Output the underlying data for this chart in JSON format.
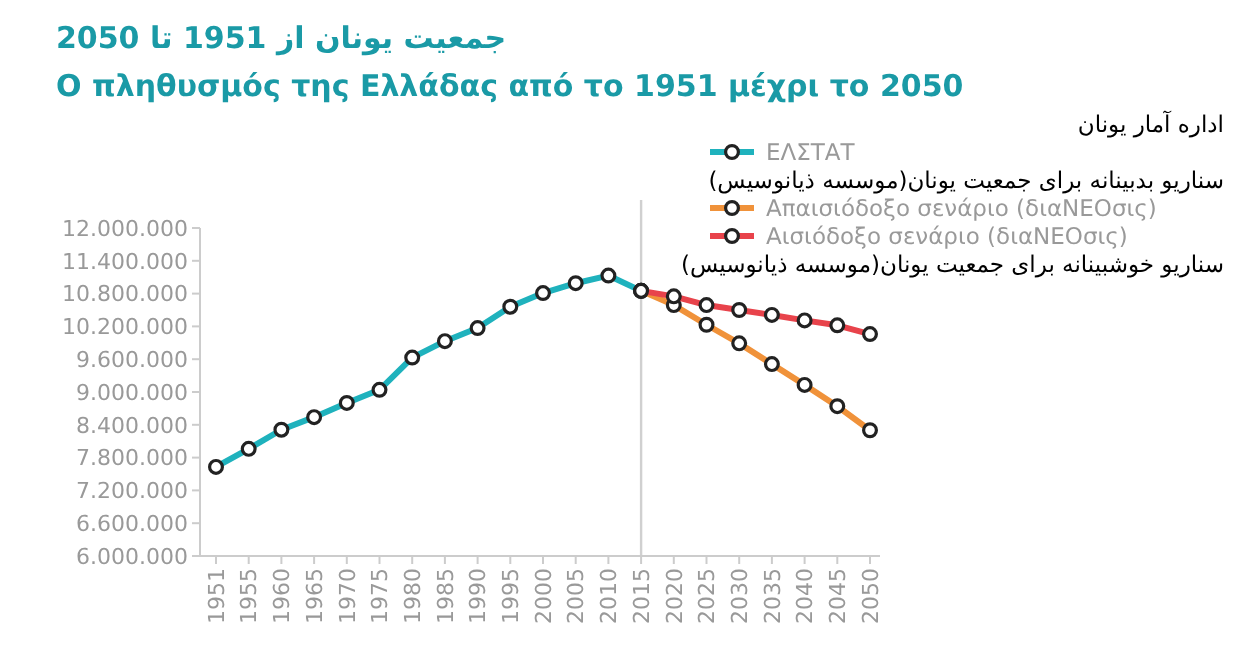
{
  "chart_data": {
    "type": "line",
    "title": "جمعیت یونان از 1951 تا 2050",
    "subtitle": "Ο πληθυσμός της Ελλάδας από το 1951 μέχρι το 2050",
    "categories": [
      "1951",
      "1955",
      "1960",
      "1965",
      "1970",
      "1975",
      "1980",
      "1985",
      "1990",
      "1995",
      "2000",
      "2005",
      "2010",
      "2015",
      "2020",
      "2025",
      "2030",
      "2035",
      "2040",
      "2045",
      "2050"
    ],
    "series": [
      {
        "name": "ΕΛΣΤΑΤ",
        "color": "#1fb2bd",
        "values": [
          7630000,
          7960000,
          8310000,
          8540000,
          8800000,
          9040000,
          9630000,
          9930000,
          10170000,
          10560000,
          10810000,
          10990000,
          11130000,
          10850000,
          null,
          null,
          null,
          null,
          null,
          null,
          null
        ]
      },
      {
        "name": "Απαισιόδοξο σενάριο (διαNEOσις)",
        "color": "#f0923a",
        "values": [
          null,
          null,
          null,
          null,
          null,
          null,
          null,
          null,
          null,
          null,
          null,
          null,
          null,
          10850000,
          10590000,
          10230000,
          9890000,
          9510000,
          9130000,
          8740000,
          8300000
        ]
      },
      {
        "name": "Αισιόδοξο σενάριο (διαNEOσις)",
        "color": "#e8434b",
        "values": [
          null,
          null,
          null,
          null,
          null,
          null,
          null,
          null,
          null,
          null,
          null,
          null,
          null,
          10850000,
          10750000,
          10590000,
          10500000,
          10410000,
          10310000,
          10220000,
          10060000
        ]
      }
    ],
    "ylim": [
      6000000,
      12000000
    ],
    "yticks": [
      {
        "value": 6000000,
        "label": "6.000.000"
      },
      {
        "value": 6600000,
        "label": "6.600.000"
      },
      {
        "value": 7200000,
        "label": "7.200.000"
      },
      {
        "value": 7800000,
        "label": "7.800.000"
      },
      {
        "value": 8400000,
        "label": "8.400.000"
      },
      {
        "value": 9000000,
        "label": "9.000.000"
      },
      {
        "value": 9600000,
        "label": "9.600.000"
      },
      {
        "value": 10200000,
        "label": "10.200.000"
      },
      {
        "value": 10800000,
        "label": "10.800.000"
      },
      {
        "value": 11400000,
        "label": "11.400.000"
      },
      {
        "value": 12000000,
        "label": "12.000.000"
      }
    ],
    "ref_lines": [
      {
        "axis": "x",
        "value": "2015",
        "color": "#d0d0d0"
      }
    ],
    "marker": "circle",
    "grid": false,
    "legend": "top right",
    "line_style": "solid",
    "annotations": [
      "اداره آمار یونان",
      "سناریو بدبینانه برای جمعیت یونان(موسسه ذیانوسیس)",
      "سناریو خوشبینانه برای جمعیت یونان(موسسه ذیانوسیس)"
    ]
  }
}
